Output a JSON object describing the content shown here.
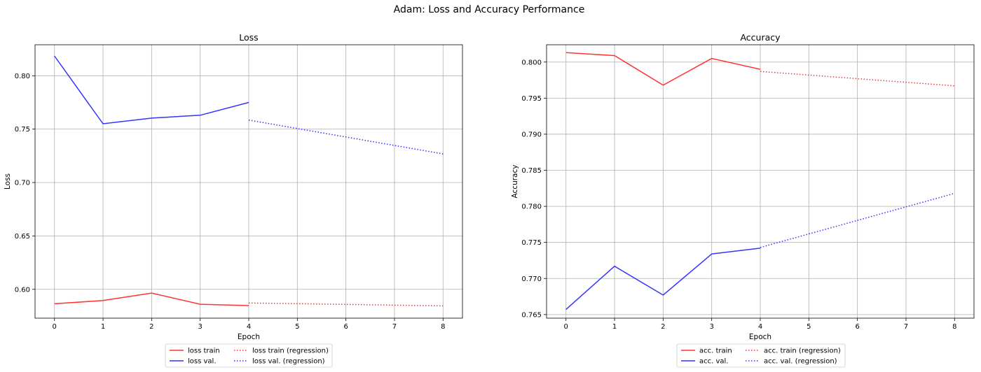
{
  "figure": {
    "suptitle": "Adam: Loss and Accuracy Performance"
  },
  "colors": {
    "train": "#ff3333",
    "val": "#3333ff",
    "grid": "#b0b0b0"
  },
  "chart_data": [
    {
      "type": "line",
      "title": "Loss",
      "xlabel": "Epoch",
      "ylabel": "Loss",
      "xlim": [
        -0.4,
        8.4
      ],
      "ylim": [
        0.573,
        0.829
      ],
      "xticks": [
        0,
        1,
        2,
        3,
        4,
        5,
        6,
        7,
        8
      ],
      "yticks": [
        0.6,
        0.65,
        0.7,
        0.75,
        0.8
      ],
      "ytick_labels": [
        "0.60",
        "0.65",
        "0.70",
        "0.75",
        "0.80"
      ],
      "grid": true,
      "legend_position": "below",
      "series": [
        {
          "name": "loss train",
          "color": "train",
          "style": "solid",
          "x": [
            0,
            1,
            2,
            3,
            4
          ],
          "y": [
            0.5865,
            0.5895,
            0.5965,
            0.586,
            0.5848
          ]
        },
        {
          "name": "loss val.",
          "color": "val",
          "style": "solid",
          "x": [
            0,
            1,
            2,
            3,
            4
          ],
          "y": [
            0.8185,
            0.755,
            0.7603,
            0.763,
            0.775
          ]
        },
        {
          "name": "loss train (regression)",
          "color": "train",
          "style": "dotted",
          "x": [
            4,
            8
          ],
          "y": [
            0.5872,
            0.5845
          ]
        },
        {
          "name": "loss val. (regression)",
          "color": "val",
          "style": "dotted",
          "x": [
            4,
            8
          ],
          "y": [
            0.7585,
            0.7268
          ]
        }
      ]
    },
    {
      "type": "line",
      "title": "Accuracy",
      "xlabel": "Epoch",
      "ylabel": "Accuracy",
      "xlim": [
        -0.4,
        8.4
      ],
      "ylim": [
        0.7645,
        0.8024
      ],
      "xticks": [
        0,
        1,
        2,
        3,
        4,
        5,
        6,
        7,
        8
      ],
      "yticks": [
        0.765,
        0.77,
        0.775,
        0.78,
        0.785,
        0.79,
        0.795,
        0.8
      ],
      "ytick_labels": [
        "0.765",
        "0.770",
        "0.775",
        "0.780",
        "0.785",
        "0.790",
        "0.795",
        "0.800"
      ],
      "grid": true,
      "legend_position": "below",
      "series": [
        {
          "name": "acc. train",
          "color": "train",
          "style": "solid",
          "x": [
            0,
            1,
            2,
            3,
            4
          ],
          "y": [
            0.8013,
            0.8009,
            0.7968,
            0.8005,
            0.799
          ]
        },
        {
          "name": "acc. val.",
          "color": "val",
          "style": "solid",
          "x": [
            0,
            1,
            2,
            3,
            4
          ],
          "y": [
            0.7657,
            0.7717,
            0.7677,
            0.7734,
            0.7742
          ]
        },
        {
          "name": "acc. train (regression)",
          "color": "train",
          "style": "dotted",
          "x": [
            4,
            8
          ],
          "y": [
            0.7987,
            0.7967
          ]
        },
        {
          "name": "acc. val. (regression)",
          "color": "val",
          "style": "dotted",
          "x": [
            4,
            8
          ],
          "y": [
            0.7743,
            0.7818
          ]
        }
      ]
    }
  ]
}
